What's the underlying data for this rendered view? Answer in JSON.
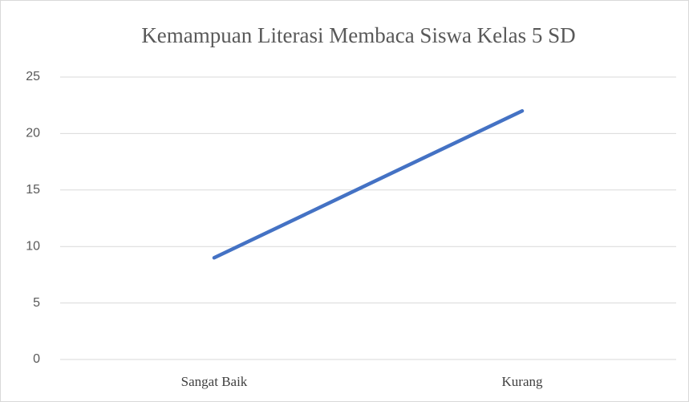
{
  "chart_data": {
    "type": "line",
    "title": "Kemampuan Literasi Membaca Siswa Kelas 5 SD",
    "categories": [
      "Sangat Baik",
      "Kurang"
    ],
    "series": [
      {
        "name": "Series 1",
        "color": "#4472c4",
        "values": [
          9,
          22
        ]
      }
    ],
    "ylim": [
      0,
      25
    ],
    "yticks": [
      0,
      5,
      10,
      15,
      20,
      25
    ],
    "grid": true
  }
}
